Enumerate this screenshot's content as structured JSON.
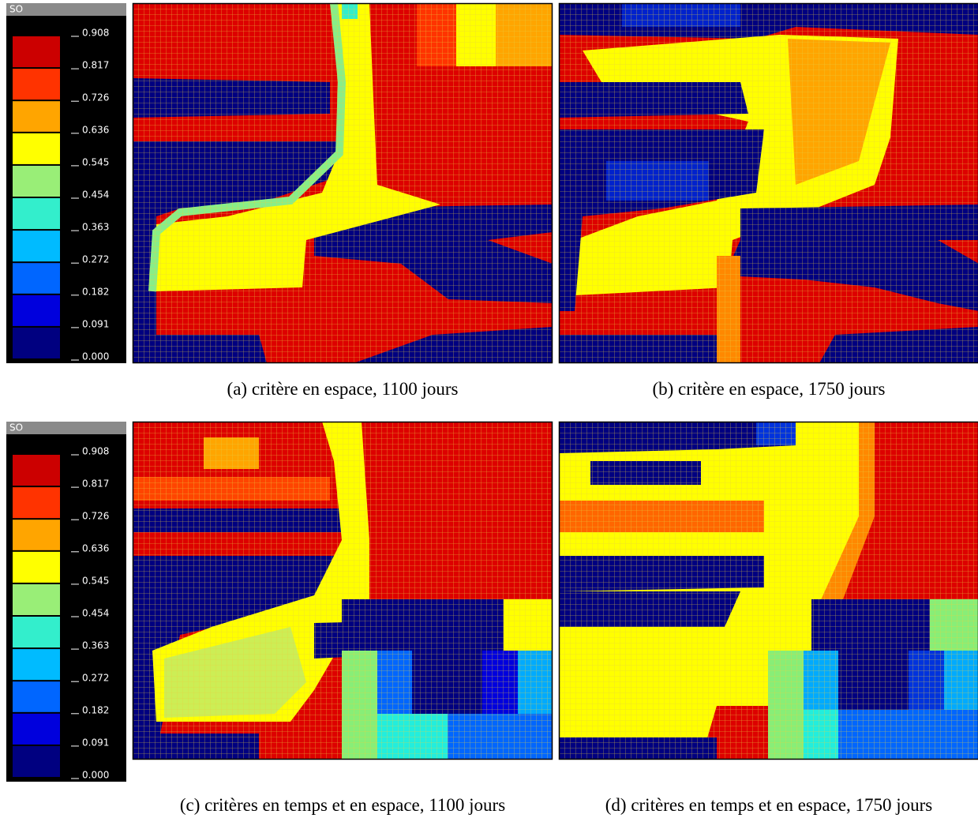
{
  "colorbars": [
    {
      "title": "SO",
      "ticks": [
        0.908,
        0.817,
        0.726,
        0.636,
        0.545,
        0.454,
        0.363,
        0.272,
        0.182,
        0.091,
        {
          "value": 0,
          "label": "0.000"
        }
      ],
      "colors": [
        "#cc0000",
        "#ff3300",
        "#ffa500",
        "#ffff00",
        "#99ee77",
        "#33eecc",
        "#00bbff",
        "#0066ff",
        "#0000dd",
        "#000080"
      ]
    },
    {
      "title": "SO",
      "ticks": [
        0.908,
        0.817,
        0.726,
        0.636,
        0.545,
        0.454,
        0.363,
        0.272,
        0.182,
        0.091,
        {
          "value": 0,
          "label": "0.000"
        }
      ],
      "colors": [
        "#cc0000",
        "#ff3300",
        "#ffa500",
        "#ffff00",
        "#99ee77",
        "#33eecc",
        "#00bbff",
        "#0066ff",
        "#0000dd",
        "#000080"
      ]
    }
  ],
  "panels": [
    {
      "caption": "(a) critère en espace, 1100 jours"
    },
    {
      "caption": "(b) critère en espace, 1750 jours"
    },
    {
      "caption": "(c) critères en temps et en espace, 1100 jours"
    },
    {
      "caption": "(d) critères en temps et en espace, 1750 jours"
    }
  ]
}
